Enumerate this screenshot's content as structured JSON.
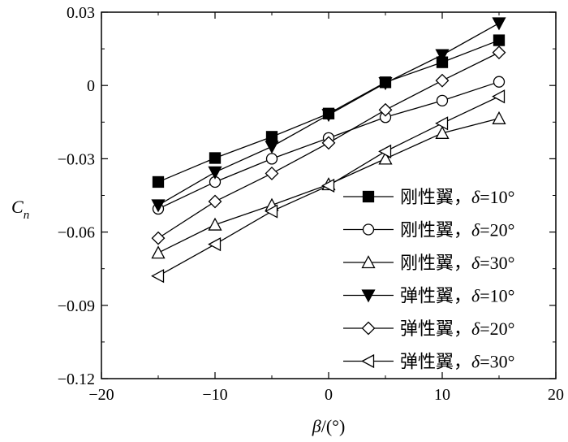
{
  "chart_data": {
    "type": "line",
    "xlabel_symbol": "β",
    "xlabel_unit": "/(°)",
    "ylabel_symbol": "C",
    "ylabel_subscript": "n",
    "xlim": [
      -20,
      20
    ],
    "ylim": [
      -0.12,
      0.03
    ],
    "xticks": [
      "−20",
      "−10",
      "0",
      "10",
      "20"
    ],
    "yticks": [
      "0.03",
      "0",
      "−0.03",
      "−0.06",
      "−0.09",
      "−0.12"
    ],
    "x": [
      -15,
      -10,
      -5,
      0,
      5,
      10,
      15
    ],
    "series": [
      {
        "name": "刚性翼，δ=10°",
        "name_prefix": "刚性翼，",
        "name_delta": "δ",
        "name_suffix": "=10°",
        "marker": "square",
        "filled": true,
        "values": [
          -0.0395,
          -0.0297,
          -0.021,
          -0.0115,
          0.0013,
          0.0095,
          0.0185
        ]
      },
      {
        "name": "刚性翼，δ=20°",
        "name_prefix": "刚性翼，",
        "name_delta": "δ",
        "name_suffix": "=20°",
        "marker": "circle",
        "filled": false,
        "values": [
          -0.0505,
          -0.0395,
          -0.03,
          -0.0215,
          -0.013,
          -0.0062,
          0.0015
        ]
      },
      {
        "name": "刚性翼，δ=30°",
        "name_prefix": "刚性翼，",
        "name_delta": "δ",
        "name_suffix": "=30°",
        "marker": "triangle-up",
        "filled": false,
        "values": [
          -0.0685,
          -0.057,
          -0.049,
          -0.0405,
          -0.03,
          -0.0195,
          -0.0135
        ]
      },
      {
        "name": "弹性翼，δ=10°",
        "name_prefix": "弹性翼，",
        "name_delta": "δ",
        "name_suffix": "=10°",
        "marker": "triangle-down",
        "filled": true,
        "values": [
          -0.049,
          -0.0355,
          -0.025,
          -0.012,
          0.001,
          0.0125,
          0.0255
        ]
      },
      {
        "name": "弹性翼，δ=20°",
        "name_prefix": "弹性翼，",
        "name_delta": "δ",
        "name_suffix": "=20°",
        "marker": "diamond",
        "filled": false,
        "values": [
          -0.0625,
          -0.0475,
          -0.036,
          -0.0235,
          -0.01,
          0.002,
          0.0135
        ]
      },
      {
        "name": "弹性翼，δ=30°",
        "name_prefix": "弹性翼，",
        "name_delta": "δ",
        "name_suffix": "=30°",
        "marker": "triangle-left",
        "filled": false,
        "values": [
          -0.078,
          -0.065,
          -0.0515,
          -0.041,
          -0.027,
          -0.0155,
          -0.0045
        ]
      }
    ],
    "legend_position": "bottom-right",
    "grid": false
  }
}
